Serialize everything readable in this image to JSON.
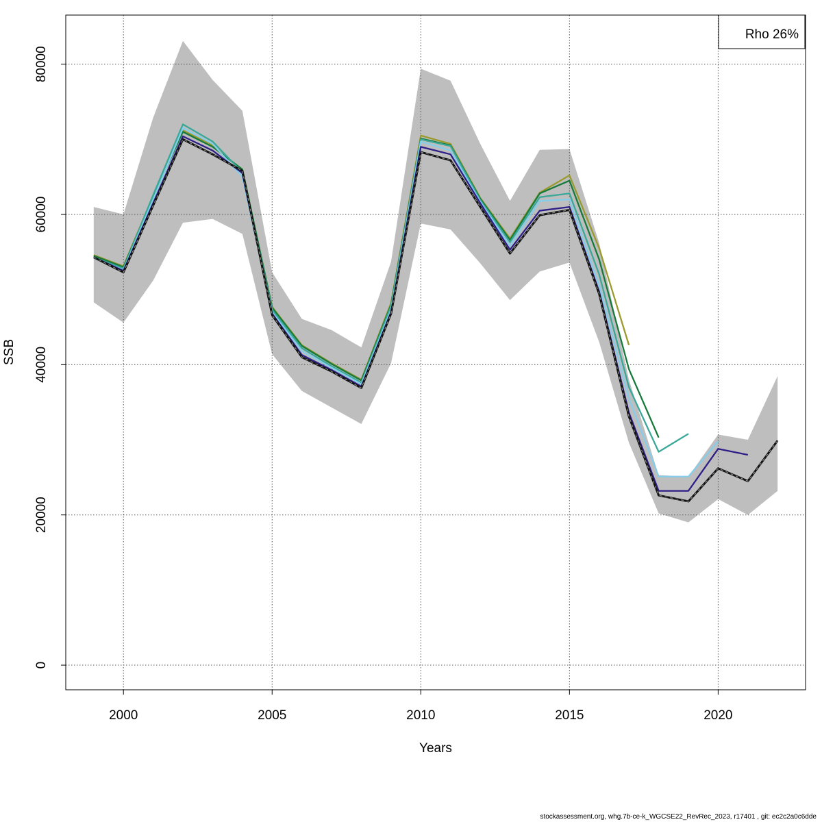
{
  "chart_data": {
    "type": "line",
    "title": "",
    "xlabel": "Years",
    "ylabel": "SSB",
    "xlim": [
      1998.06,
      2022.94
    ],
    "ylim": [
      -3280,
      86540
    ],
    "xticks": [
      2000,
      2005,
      2010,
      2015,
      2020
    ],
    "yticks": [
      0,
      20000,
      40000,
      60000,
      80000
    ],
    "grid": true,
    "legend": {
      "text": "Rho 26%",
      "placement": "top-right"
    },
    "ribbon": {
      "color": "#bebebe",
      "x": [
        1999,
        2000,
        2001,
        2002,
        2003,
        2004,
        2005,
        2006,
        2007,
        2008,
        2009,
        2010,
        2011,
        2012,
        2013,
        2014,
        2015,
        2016,
        2017,
        2018,
        2019,
        2020,
        2021,
        2022
      ],
      "upper": [
        61000,
        60000,
        72900,
        83100,
        77900,
        73800,
        52300,
        46100,
        44600,
        42300,
        53700,
        79400,
        77800,
        69400,
        61800,
        68600,
        68700,
        56200,
        38000,
        25300,
        25100,
        30700,
        30000,
        38500
      ],
      "lower": [
        48300,
        45600,
        51200,
        58900,
        59400,
        57400,
        41400,
        36500,
        34300,
        32100,
        40200,
        58800,
        58000,
        53500,
        48600,
        52400,
        53600,
        43000,
        29600,
        20200,
        19000,
        22100,
        20000,
        23200
      ]
    },
    "series": [
      {
        "color": "#9a9a2e",
        "start": 1999,
        "values": [
          54600,
          53100,
          62500,
          71200,
          69200,
          65900,
          47700,
          42600,
          40200,
          38000,
          48200,
          70500,
          69400,
          62200,
          56800,
          62900,
          65200,
          55500,
          42600
        ]
      },
      {
        "color": "#177a3b",
        "start": 1999,
        "values": [
          54500,
          53000,
          62400,
          71000,
          69000,
          66000,
          47600,
          42500,
          40100,
          37900,
          48000,
          70100,
          69200,
          62100,
          56600,
          62800,
          64500,
          54000,
          39400,
          30300
        ]
      },
      {
        "color": "#3aa899",
        "start": 1999,
        "values": [
          54300,
          52800,
          62600,
          72000,
          69700,
          65600,
          47300,
          42200,
          39800,
          37600,
          47800,
          70000,
          69100,
          61900,
          56300,
          62300,
          62800,
          52000,
          37000,
          28400,
          30800
        ]
      },
      {
        "color": "#86cdea",
        "start": 1999,
        "values": [
          54200,
          52600,
          62000,
          71500,
          69400,
          65000,
          47000,
          41800,
          39600,
          37400,
          47300,
          69700,
          68500,
          61700,
          55800,
          61800,
          62000,
          50500,
          35500,
          25100,
          25100,
          29800
        ]
      },
      {
        "color": "#2e1f87",
        "start": 1999,
        "values": [
          54300,
          52500,
          61500,
          70400,
          68500,
          65500,
          46800,
          41300,
          39300,
          37100,
          47000,
          69000,
          68000,
          61500,
          55300,
          60500,
          61000,
          49700,
          33600,
          23200,
          23200,
          28800,
          28000
        ]
      },
      {
        "color": "#111111",
        "start": 1999,
        "dashed": true,
        "values": [
          54300,
          52300,
          61200,
          70000,
          68000,
          65800,
          46600,
          41000,
          39100,
          36900,
          46800,
          68300,
          67200,
          61000,
          54800,
          59900,
          60600,
          49400,
          33100,
          22600,
          21800,
          26200,
          24500,
          29900
        ]
      }
    ]
  },
  "footer": "stockassessment.org, whg.7b-ce-k_WGCSE22_RevRec_2023, r17401 , git: ec2c2a0c6dde"
}
